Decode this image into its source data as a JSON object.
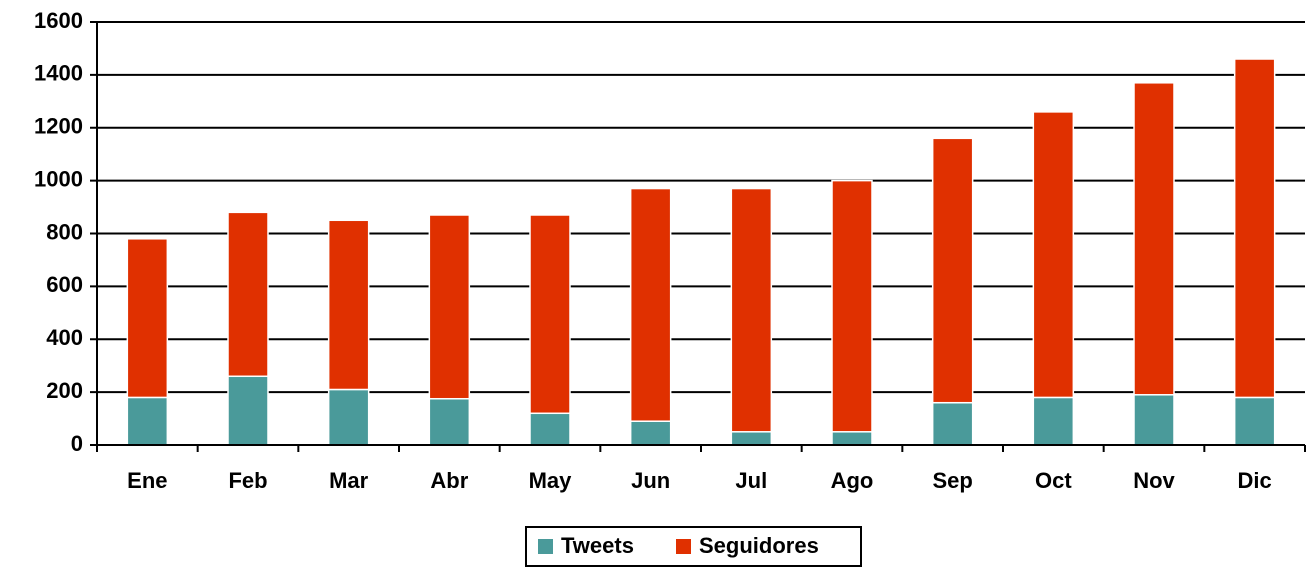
{
  "chart_data": {
    "type": "stacked_bar",
    "categories": [
      "Ene",
      "Feb",
      "Mar",
      "Abr",
      "May",
      "Jun",
      "Jul",
      "Ago",
      "Sep",
      "Oct",
      "Nov",
      "Dic"
    ],
    "series": [
      {
        "name": "Tweets",
        "color": "#4a9a9a",
        "values": [
          180,
          260,
          210,
          175,
          120,
          90,
          50,
          50,
          160,
          180,
          190,
          180
        ]
      },
      {
        "name": "Seguidores",
        "color": "#e03000",
        "values": [
          600,
          620,
          640,
          695,
          750,
          880,
          920,
          950,
          1000,
          1080,
          1180,
          1280
        ]
      }
    ],
    "ylim": [
      0,
      1600
    ],
    "yticks": [
      0,
      200,
      400,
      600,
      800,
      1000,
      1200,
      1400,
      1600
    ],
    "grid": true,
    "legend": "bottom"
  }
}
